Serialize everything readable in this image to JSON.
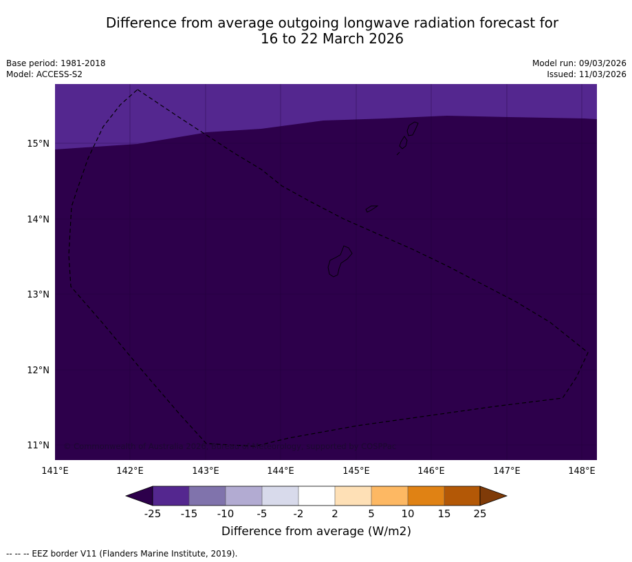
{
  "title_line1": "Difference from average outgoing longwave radiation forecast for",
  "title_line2": "16 to 22 March 2026",
  "base_period": "Base period: 1981-2018",
  "model": "Model: ACCESS-S2",
  "model_run": "Model run: 09/03/2026",
  "issued": "Issued: 11/03/2026",
  "copyright": "© Commonwealth of Australia 2026, Bureau of Meteorology, supported by COSPPac",
  "lat_labels": [
    "15°N",
    "14°N",
    "13°N",
    "12°N",
    "11°N"
  ],
  "lon_labels": [
    "141°E",
    "142°E",
    "143°E",
    "144°E",
    "145°E",
    "146°E",
    "147°E",
    "148°E"
  ],
  "colorbar": {
    "ticks": [
      "-25",
      "-15",
      "-10",
      "-5",
      "-2",
      "2",
      "5",
      "10",
      "15",
      "25"
    ],
    "colors": [
      "#54278f",
      "#8073ac",
      "#b2abd2",
      "#d8daeb",
      "#ffffff",
      "#fee0b6",
      "#fdb863",
      "#e08214",
      "#b35806"
    ],
    "under_color": "#2d004b",
    "over_color": "#7f3b08",
    "label": "Difference from average (W/m2)"
  },
  "legend_note": "--  --  -- EEZ border V11 (Flanders Marine Institute, 2019).",
  "colors": {
    "field_main": "#2d004b",
    "field_north": "#54278f"
  }
}
